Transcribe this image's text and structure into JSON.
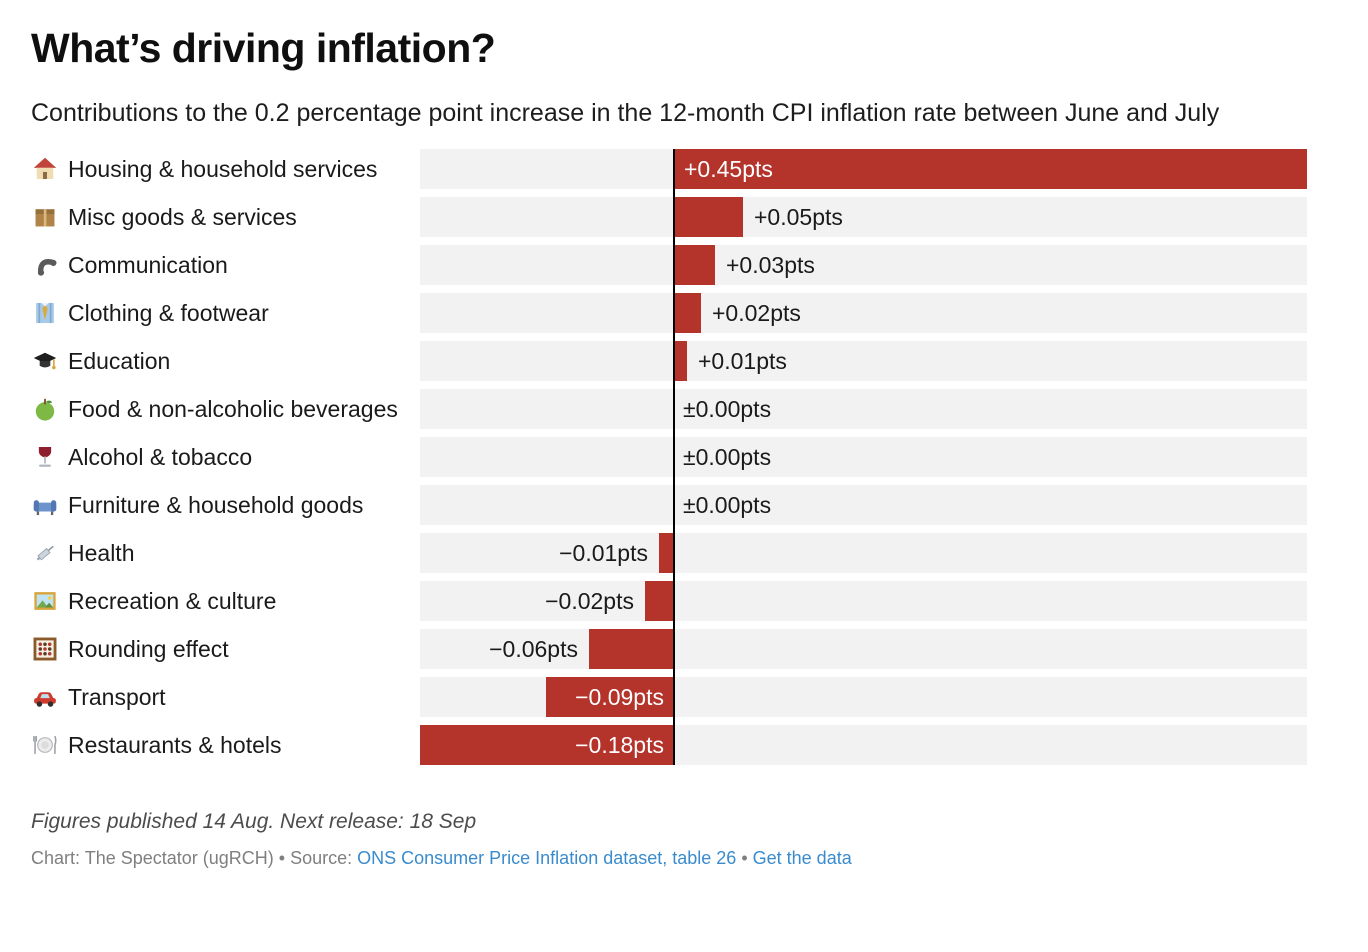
{
  "title": "What’s driving inflation?",
  "subtitle": "Contributions to the 0.2 percentage point increase in the 12-month CPI inflation rate between June and July",
  "chart_data": {
    "type": "bar",
    "orientation": "horizontal",
    "title": "What’s driving inflation?",
    "subtitle": "Contributions to the 0.2 percentage point increase in the 12-month CPI inflation rate between June and July",
    "unit": "pts",
    "xlim": [
      -0.18,
      0.45
    ],
    "grid": false,
    "bar_color": "#b4332a",
    "track_color": "#f2f2f2",
    "zero_line_color": "#000000",
    "inside_label_color": "#ffffff",
    "outside_label_color": "#1a1a1a",
    "categories": [
      "Housing & household services",
      "Misc goods & services",
      "Communication",
      "Clothing & footwear",
      "Education",
      "Food & non-alcoholic beverages",
      "Alcohol & tobacco",
      "Furniture & household goods",
      "Health",
      "Recreation & culture",
      "Rounding effect",
      "Transport",
      "Restaurants & hotels"
    ],
    "values": [
      0.45,
      0.05,
      0.03,
      0.02,
      0.01,
      0,
      0,
      0,
      -0.01,
      -0.02,
      -0.06,
      -0.09,
      -0.18
    ],
    "rows": [
      {
        "emoji": "🏠",
        "icon": "house-icon",
        "label": "Housing & household services",
        "value": 0.45,
        "value_label": "+0.45pts",
        "label_inside": true
      },
      {
        "emoji": "📦",
        "icon": "package-icon",
        "label": "Misc goods & services",
        "value": 0.05,
        "value_label": "+0.05pts",
        "label_inside": false
      },
      {
        "emoji": "📞",
        "icon": "telephone-receiver-icon",
        "label": "Communication",
        "value": 0.03,
        "value_label": "+0.03pts",
        "label_inside": false
      },
      {
        "emoji": "👔",
        "icon": "necktie-icon",
        "label": "Clothing & footwear",
        "value": 0.02,
        "value_label": "+0.02pts",
        "label_inside": false
      },
      {
        "emoji": "🎓",
        "icon": "graduation-cap-icon",
        "label": "Education",
        "value": 0.01,
        "value_label": "+0.01pts",
        "label_inside": false
      },
      {
        "emoji": "🍏",
        "icon": "green-apple-icon",
        "label": "Food & non-alcoholic beverages",
        "value": 0,
        "value_label": "±0.00pts",
        "label_inside": false
      },
      {
        "emoji": "🍷",
        "icon": "wine-glass-icon",
        "label": "Alcohol & tobacco",
        "value": 0,
        "value_label": "±0.00pts",
        "label_inside": false
      },
      {
        "emoji": "🛋️",
        "icon": "couch-icon",
        "label": "Furniture & household goods",
        "value": 0,
        "value_label": "±0.00pts",
        "label_inside": false
      },
      {
        "emoji": "💉",
        "icon": "syringe-icon",
        "label": "Health",
        "value": -0.01,
        "value_label": "−0.01pts",
        "label_inside": false
      },
      {
        "emoji": "🖼️",
        "icon": "framed-picture-icon",
        "label": "Recreation & culture",
        "value": -0.02,
        "value_label": "−0.02pts",
        "label_inside": false
      },
      {
        "emoji": "🧮",
        "icon": "abacus-icon",
        "label": "Rounding effect",
        "value": -0.06,
        "value_label": "−0.06pts",
        "label_inside": false
      },
      {
        "emoji": "🚗",
        "icon": "car-icon",
        "label": "Transport",
        "value": -0.09,
        "value_label": "−0.09pts",
        "label_inside": true
      },
      {
        "emoji": "🍽️",
        "icon": "fork-knife-plate-icon",
        "label": "Restaurants & hotels",
        "value": -0.18,
        "value_label": "−0.18pts",
        "label_inside": true
      }
    ]
  },
  "footer": {
    "note": "Figures published 14 Aug. Next release: 18 Sep",
    "chart_credit": "Chart: The Spectator (ugRCH)",
    "bullet1": " • ",
    "source_label": "Source: ",
    "source_link_text": "ONS Consumer Price Inflation dataset, table 26",
    "bullet2": " • ",
    "get_data_text": "Get the data",
    "link_color": "#3a8bcd"
  }
}
